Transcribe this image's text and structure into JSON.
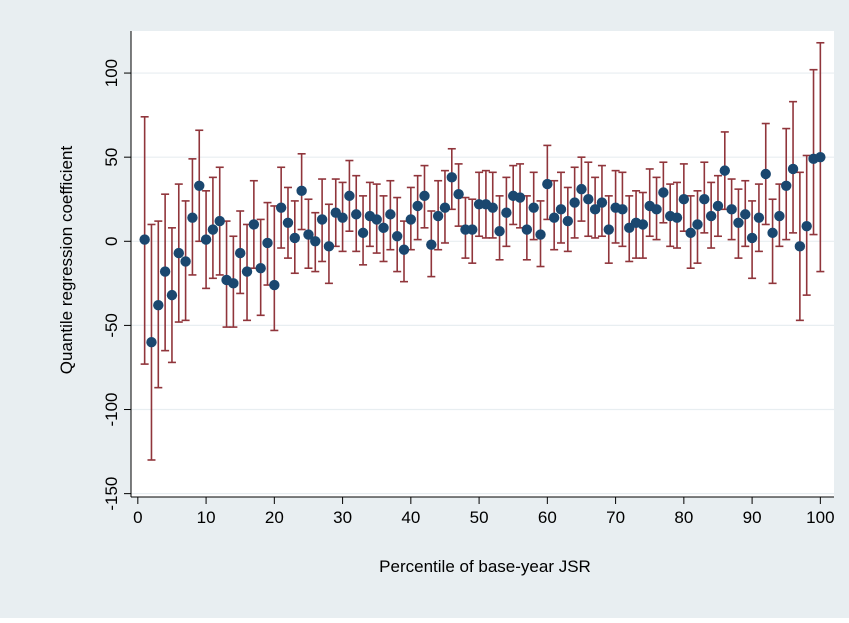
{
  "chart_data": {
    "type": "scatter",
    "xlabel": "Percentile of base-year JSR",
    "ylabel": "Quantile regression coefficient",
    "xlim": [
      -1,
      102
    ],
    "ylim": [
      -152,
      125
    ],
    "xticks": [
      0,
      10,
      20,
      30,
      40,
      50,
      60,
      70,
      80,
      90,
      100
    ],
    "yticks": [
      -150,
      -100,
      -50,
      0,
      50,
      100
    ],
    "ytick_labels": [
      "-150",
      "-100",
      "-50",
      "0",
      "50",
      "100"
    ],
    "grid": "horizontal",
    "legend": "none",
    "colors": {
      "outer_background": "#E8EEF1",
      "plot_background": "#FFFFFF",
      "gridline": "#E8EEF1",
      "marker": "#1A476F",
      "error_bar": "#90353B"
    },
    "x": [
      1,
      2,
      3,
      4,
      5,
      6,
      7,
      8,
      9,
      10,
      11,
      12,
      13,
      14,
      15,
      16,
      17,
      18,
      19,
      20,
      21,
      22,
      23,
      24,
      25,
      26,
      27,
      28,
      29,
      30,
      31,
      32,
      33,
      34,
      35,
      36,
      37,
      38,
      39,
      40,
      41,
      42,
      43,
      44,
      45,
      46,
      47,
      48,
      49,
      50,
      51,
      52,
      53,
      54,
      55,
      56,
      57,
      58,
      59,
      60,
      61,
      62,
      63,
      64,
      65,
      66,
      67,
      68,
      69,
      70,
      71,
      72,
      73,
      74,
      75,
      76,
      77,
      78,
      79,
      80,
      81,
      82,
      83,
      84,
      85,
      86,
      87,
      88,
      89,
      90,
      91,
      92,
      93,
      94,
      95,
      96,
      97,
      98,
      99,
      100
    ],
    "estimate": [
      1,
      -60,
      -38,
      -18,
      -32,
      -7,
      -12,
      14,
      33,
      1,
      7,
      12,
      -23,
      -25,
      -7,
      -18,
      10,
      -16,
      -1,
      -26,
      20,
      11,
      2,
      30,
      4,
      0,
      13,
      -3,
      17,
      14,
      27,
      16,
      5,
      15,
      13,
      8,
      16,
      3,
      -5,
      13,
      21,
      27,
      -2,
      15,
      20,
      38,
      28,
      7,
      7,
      22,
      22,
      20,
      6,
      17,
      27,
      26,
      7,
      20,
      4,
      34,
      14,
      19,
      12,
      23,
      31,
      25,
      19,
      23,
      7,
      20,
      19,
      8,
      11,
      10,
      21,
      19,
      29,
      15,
      14,
      25,
      5,
      10,
      25,
      15,
      21,
      42,
      19,
      11,
      16,
      2,
      14,
      40,
      5,
      15,
      33,
      43,
      -3,
      9,
      49,
      50
    ],
    "upper": [
      74,
      10,
      12,
      28,
      8,
      34,
      24,
      49,
      66,
      30,
      38,
      44,
      12,
      3,
      18,
      10,
      36,
      13,
      23,
      21,
      44,
      32,
      24,
      52,
      25,
      17,
      37,
      22,
      37,
      35,
      48,
      39,
      27,
      35,
      34,
      27,
      36,
      26,
      12,
      32,
      39,
      45,
      18,
      36,
      42,
      55,
      46,
      26,
      25,
      41,
      42,
      41,
      27,
      38,
      45,
      46,
      27,
      41,
      24,
      57,
      36,
      41,
      32,
      44,
      50,
      47,
      38,
      45,
      27,
      42,
      41,
      27,
      30,
      29,
      43,
      38,
      47,
      34,
      35,
      46,
      27,
      30,
      47,
      35,
      39,
      65,
      37,
      31,
      36,
      24,
      34,
      70,
      25,
      34,
      67,
      83,
      41,
      51,
      102,
      118
    ],
    "lower": [
      -73,
      -130,
      -87,
      -65,
      -72,
      -48,
      -47,
      -20,
      0,
      -28,
      -22,
      -20,
      -51,
      -51,
      -31,
      -47,
      -16,
      -44,
      -26,
      -53,
      -4,
      -10,
      -19,
      7,
      -16,
      -18,
      -12,
      -25,
      -3,
      -6,
      6,
      -6,
      -14,
      -3,
      -7,
      -12,
      -5,
      -18,
      -24,
      -5,
      1,
      8,
      -21,
      -5,
      -1,
      19,
      9,
      -10,
      -13,
      3,
      2,
      2,
      -11,
      -3,
      10,
      8,
      -11,
      1,
      -15,
      13,
      -5,
      -1,
      -6,
      2,
      12,
      3,
      2,
      3,
      -13,
      -1,
      -3,
      -12,
      -10,
      -10,
      3,
      1,
      11,
      -3,
      -4,
      6,
      -16,
      -13,
      5,
      -4,
      3,
      19,
      1,
      -10,
      -3,
      -22,
      -6,
      10,
      -25,
      -3,
      1,
      5,
      -47,
      -32,
      4,
      -18
    ]
  }
}
